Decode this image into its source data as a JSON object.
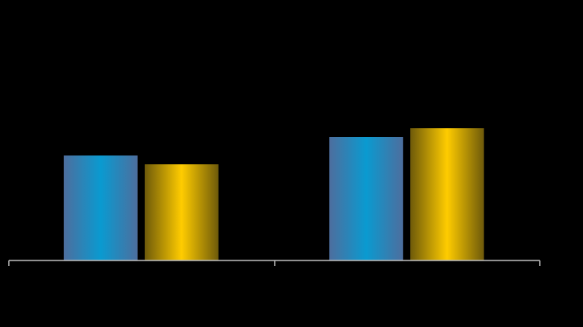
{
  "chart_data": {
    "type": "bar",
    "categories": [
      null,
      null
    ],
    "series": [
      {
        "color": "#0a9ad0",
        "gradient": [
          "#4d6e9e",
          "#0a9ad0",
          "#4d6e9e"
        ],
        "values": [
          131,
          154
        ]
      },
      {
        "color": "#ffcc00",
        "gradient": [
          "#6e5a0a",
          "#ffcc00",
          "#6e5a0a"
        ],
        "values": [
          120,
          165
        ]
      }
    ],
    "ylim": [
      0,
      300
    ]
  }
}
